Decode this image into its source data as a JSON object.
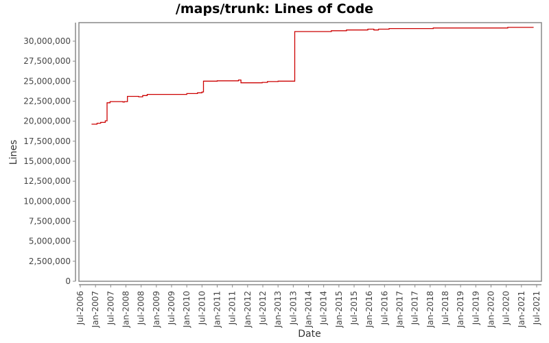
{
  "chart_data": {
    "type": "line",
    "title": "/maps/trunk: Lines of Code",
    "xlabel": "Date",
    "ylabel": "Lines",
    "ylim": [
      0,
      32000000
    ],
    "grid": false,
    "legend": null,
    "line_color": "#cc0000",
    "y_ticks": [
      {
        "value": 0,
        "label": "0"
      },
      {
        "value": 2500000,
        "label": "2,500,000"
      },
      {
        "value": 5000000,
        "label": "5,000,000"
      },
      {
        "value": 7500000,
        "label": "7,500,000"
      },
      {
        "value": 10000000,
        "label": "10,000,000"
      },
      {
        "value": 12500000,
        "label": "12,500,000"
      },
      {
        "value": 15000000,
        "label": "15,000,000"
      },
      {
        "value": 17500000,
        "label": "17,500,000"
      },
      {
        "value": 20000000,
        "label": "20,000,000"
      },
      {
        "value": 22500000,
        "label": "22,500,000"
      },
      {
        "value": 25000000,
        "label": "25,000,000"
      },
      {
        "value": 27500000,
        "label": "27,500,000"
      },
      {
        "value": 30000000,
        "label": "30,000,000"
      }
    ],
    "x_ticks": [
      "Jul-2006",
      "Jan-2007",
      "Jul-2007",
      "Jan-2008",
      "Jul-2008",
      "Jan-2009",
      "Jul-2009",
      "Jan-2010",
      "Jul-2010",
      "Jan-2011",
      "Jul-2011",
      "Jan-2012",
      "Jul-2012",
      "Jan-2013",
      "Jul-2013",
      "Jan-2014",
      "Jul-2014",
      "Jan-2015",
      "Jul-2015",
      "Jan-2016",
      "Jul-2016",
      "Jan-2017",
      "Jul-2017",
      "Jan-2018",
      "Jul-2018",
      "Jan-2019",
      "Jul-2019",
      "Jan-2020",
      "Jul-2020",
      "Jan-2021",
      "Jul-2021"
    ],
    "series": [
      {
        "name": "Lines",
        "step": true,
        "points": [
          {
            "x": 2006.87,
            "y": 19630000
          },
          {
            "x": 2007.05,
            "y": 19750000
          },
          {
            "x": 2007.17,
            "y": 19850000
          },
          {
            "x": 2007.32,
            "y": 20050000
          },
          {
            "x": 2007.38,
            "y": 22300000
          },
          {
            "x": 2007.48,
            "y": 22450000
          },
          {
            "x": 2007.9,
            "y": 22400000
          },
          {
            "x": 2007.95,
            "y": 22450000
          },
          {
            "x": 2008.05,
            "y": 23100000
          },
          {
            "x": 2008.42,
            "y": 23050000
          },
          {
            "x": 2008.55,
            "y": 23200000
          },
          {
            "x": 2008.7,
            "y": 23350000
          },
          {
            "x": 2009.1,
            "y": 23350000
          },
          {
            "x": 2010.0,
            "y": 23450000
          },
          {
            "x": 2010.35,
            "y": 23550000
          },
          {
            "x": 2010.5,
            "y": 23650000
          },
          {
            "x": 2010.55,
            "y": 25000000
          },
          {
            "x": 2011.0,
            "y": 25050000
          },
          {
            "x": 2011.7,
            "y": 25150000
          },
          {
            "x": 2011.78,
            "y": 24800000
          },
          {
            "x": 2012.48,
            "y": 24850000
          },
          {
            "x": 2012.65,
            "y": 24950000
          },
          {
            "x": 2013.0,
            "y": 25000000
          },
          {
            "x": 2013.55,
            "y": 31200000
          },
          {
            "x": 2014.75,
            "y": 31300000
          },
          {
            "x": 2015.25,
            "y": 31400000
          },
          {
            "x": 2015.95,
            "y": 31500000
          },
          {
            "x": 2016.15,
            "y": 31400000
          },
          {
            "x": 2016.3,
            "y": 31500000
          },
          {
            "x": 2016.65,
            "y": 31580000
          },
          {
            "x": 2018.1,
            "y": 31650000
          },
          {
            "x": 2020.55,
            "y": 31720000
          },
          {
            "x": 2021.4,
            "y": 31720000
          }
        ]
      }
    ]
  }
}
